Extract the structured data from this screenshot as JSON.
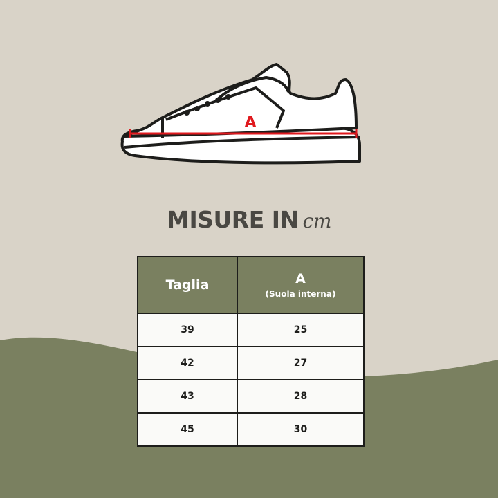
{
  "colors": {
    "background": "#d9d3c8",
    "accent_green": "#7a8060",
    "measure_line": "#e0191e",
    "text_dark": "#4a4843"
  },
  "illustration": {
    "icon": "sneaker-side-view-icon",
    "measure_label": "A"
  },
  "title": {
    "text": "MISURE IN",
    "unit": "cm"
  },
  "table": {
    "headers": {
      "size": "Taglia",
      "measure": "A",
      "measure_sub": "(Suola interna)"
    },
    "rows": [
      {
        "size": "39",
        "a": "25"
      },
      {
        "size": "42",
        "a": "27"
      },
      {
        "size": "43",
        "a": "28"
      },
      {
        "size": "45",
        "a": "30"
      }
    ]
  }
}
